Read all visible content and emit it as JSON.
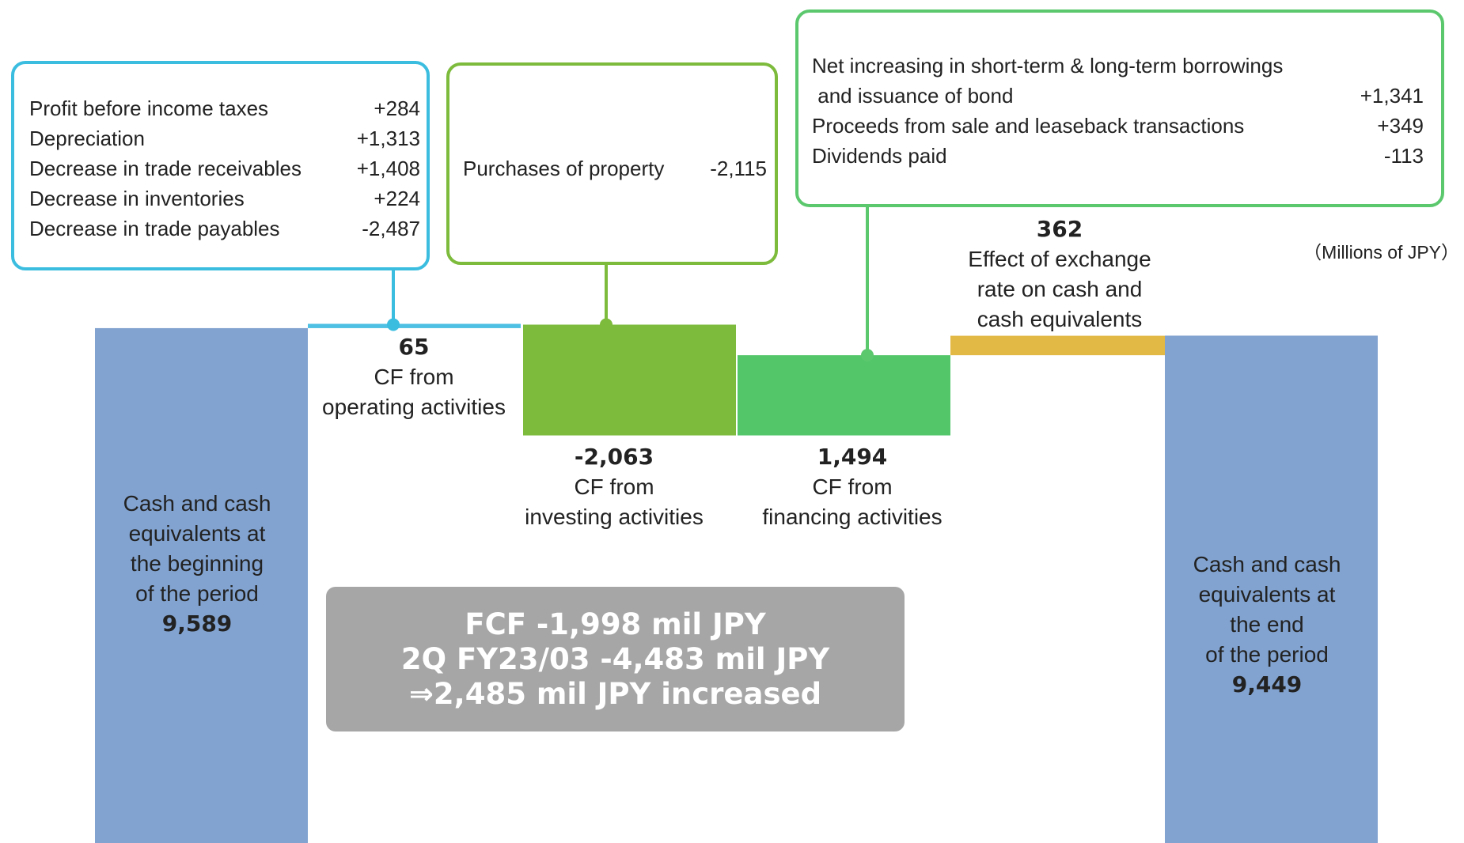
{
  "chart_data": {
    "type": "waterfall",
    "unit_note": "（Millions of JPY）",
    "categories": [
      "Cash and cash\nequivalents at\nthe beginning\nof the period",
      "CF from\noperating activities",
      "CF from\ninvesting activities",
      "CF from\nfinancing activities",
      "Effect of exchange\nrate on cash and\ncash equivalents",
      "Cash and cash\nequivalents at\nthe end\nof the period"
    ],
    "values": [
      9589,
      65,
      -2063,
      1494,
      362,
      9449
    ],
    "value_labels": [
      "9,589",
      "65",
      "-2,063",
      "1,494",
      "362",
      "9,449"
    ],
    "measure": [
      "total",
      "relative",
      "relative",
      "relative",
      "relative",
      "total"
    ],
    "colors": [
      "#82a3d0",
      "#4ec0e4",
      "#7dbb3c",
      "#53c66a",
      "#e3b945",
      "#82a3d0"
    ],
    "ylim": [
      0,
      15700
    ],
    "annotations": [
      {
        "color": "#3bbde0",
        "items": [
          {
            "label": "Profit before income taxes",
            "value": "+284"
          },
          {
            "label": "Depreciation",
            "value": "+1,313"
          },
          {
            "label": "Decrease in trade receivables",
            "value": "+1,408"
          },
          {
            "label": "Decrease in inventories",
            "value": "+224"
          },
          {
            "label": "Decrease in trade payables",
            "value": "-2,487"
          }
        ]
      },
      {
        "color": "#7dbb3c",
        "items": [
          {
            "label": "Purchases of property",
            "value": "-2,115"
          }
        ]
      },
      {
        "color": "#5cc86e",
        "items": [
          {
            "label": "Net increasing in short-term & long-term borrowings\n and issuance of bond",
            "value": "+1,341"
          },
          {
            "label": "Proceeds from sale and leaseback transactions",
            "value": "+349"
          },
          {
            "label": "Dividends paid",
            "value": "-113"
          }
        ]
      }
    ],
    "summary": [
      "FCF -1,998 mil JPY",
      "2Q FY23/03 -4,483 mil JPY",
      "⇒2,485 mil JPY increased"
    ]
  }
}
